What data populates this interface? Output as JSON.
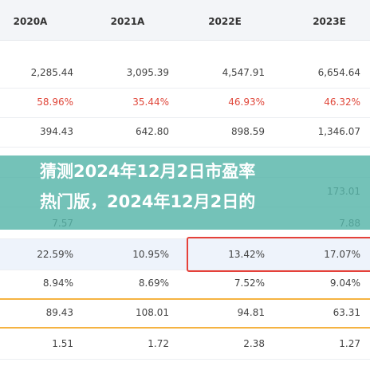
{
  "table": {
    "columns": [
      "2020A",
      "2021A",
      "2022E",
      "2023E"
    ],
    "rows": [
      [
        "2,285.44",
        "3,095.39",
        "4,547.91",
        "6,654.64"
      ],
      [
        "58.96%",
        "35.44%",
        "46.93%",
        "46.32%"
      ],
      [
        "394.43",
        "642.80",
        "898.59",
        "1,346.07"
      ],
      [
        null,
        null,
        null,
        null
      ],
      [
        null,
        null,
        null,
        "173.01"
      ],
      [
        "7.57",
        null,
        null,
        "7.88"
      ],
      [
        "22.59%",
        "10.95%",
        "13.42%",
        "17.07%"
      ],
      [
        "8.94%",
        "8.69%",
        "7.52%",
        "9.04%"
      ],
      [
        "89.43",
        "108.01",
        "94.81",
        "63.31"
      ],
      [
        "1.51",
        "1.72",
        "2.38",
        "1.27"
      ]
    ]
  },
  "overlay": {
    "lines": [
      "猜测2024年12月2日市盈率",
      "热门版，2024年12月2日的"
    ]
  }
}
